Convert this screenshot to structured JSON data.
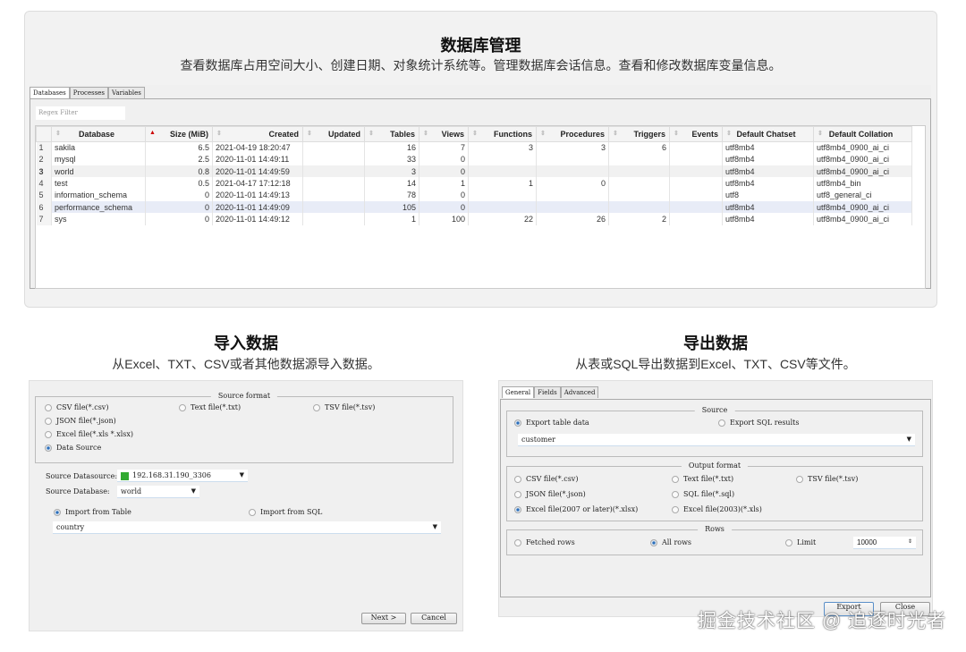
{
  "db": {
    "title": "数据库管理",
    "subtitle": "查看数据库占用空间大小、创建日期、对象统计系统等。管理数据库会话信息。查看和修改数据库变量信息。",
    "tabs": [
      "Databases",
      "Processes",
      "Variables"
    ],
    "filter_placeholder": "Regex Filter",
    "columns": [
      "Database",
      "Size (MiB)",
      "Created",
      "Updated",
      "Tables",
      "Views",
      "Functions",
      "Procedures",
      "Triggers",
      "Events",
      "Default Chatset",
      "Default Collation"
    ],
    "sorted_column": "Size (MiB)",
    "rows": [
      [
        "1",
        "sakila",
        "6.5",
        "2021-04-19 18:20:47",
        "",
        "16",
        "7",
        "3",
        "3",
        "6",
        "",
        "utf8mb4",
        "utf8mb4_0900_ai_ci"
      ],
      [
        "2",
        "mysql",
        "2.5",
        "2020-11-01 14:49:11",
        "",
        "33",
        "0",
        "",
        "",
        "",
        "",
        "utf8mb4",
        "utf8mb4_0900_ai_ci"
      ],
      [
        "3",
        "world",
        "0.8",
        "2020-11-01 14:49:59",
        "",
        "3",
        "0",
        "",
        "",
        "",
        "",
        "utf8mb4",
        "utf8mb4_0900_ai_ci"
      ],
      [
        "4",
        "test",
        "0.5",
        "2021-04-17 17:12:18",
        "",
        "14",
        "1",
        "1",
        "0",
        "",
        "",
        "utf8mb4",
        "utf8mb4_bin"
      ],
      [
        "5",
        "information_schema",
        "0",
        "2020-11-01 14:49:13",
        "",
        "78",
        "0",
        "",
        "",
        "",
        "",
        "utf8",
        "utf8_general_ci"
      ],
      [
        "6",
        "performance_schema",
        "0",
        "2020-11-01 14:49:09",
        "",
        "105",
        "0",
        "",
        "",
        "",
        "",
        "utf8mb4",
        "utf8mb4_0900_ai_ci"
      ],
      [
        "7",
        "sys",
        "0",
        "2020-11-01 14:49:12",
        "",
        "1",
        "100",
        "22",
        "26",
        "2",
        "",
        "utf8mb4",
        "utf8mb4_0900_ai_ci"
      ]
    ]
  },
  "import": {
    "title": "导入数据",
    "subtitle": "从Excel、TXT、CSV或者其他数据源导入数据。",
    "group": "Source format",
    "formats": [
      "CSV file(*.csv)",
      "Text file(*.txt)",
      "TSV file(*.tsv)",
      "JSON file(*.json)",
      "Excel file(*.xls *.xlsx)",
      "Data Source"
    ],
    "selected_format": "Data Source",
    "datasource_label": "Source Datasource:",
    "datasource": "192.168.31.190_3306",
    "database_label": "Source Database:",
    "database": "world",
    "from_table": "Import from Table",
    "from_sql": "Import from SQL",
    "table": "country",
    "next": "Next >",
    "cancel": "Cancel"
  },
  "export": {
    "title": "导出数据",
    "subtitle": "从表或SQL导出数据到Excel、TXT、CSV等文件。",
    "tabs": [
      "General",
      "Fields",
      "Advanced"
    ],
    "source_group": "Source",
    "export_table": "Export table data",
    "export_sql": "Export SQL results",
    "table": "customer",
    "output_group": "Output format",
    "formats": [
      "CSV file(*.csv)",
      "Text file(*.txt)",
      "TSV file(*.tsv)",
      "JSON file(*.json)",
      "SQL file(*.sql)",
      "Excel file(2007 or later)(*.xlsx)",
      "Excel file(2003)(*.xls)"
    ],
    "selected_format": "Excel file(2007 or later)(*.xlsx)",
    "rows_group": "Rows",
    "fetched": "Fetched rows",
    "all": "All rows",
    "limit": "Limit",
    "limit_value": "10000",
    "export_btn": "Export",
    "close_btn": "Close"
  },
  "watermark": "掘金技术社区 @ 追逐时光者"
}
